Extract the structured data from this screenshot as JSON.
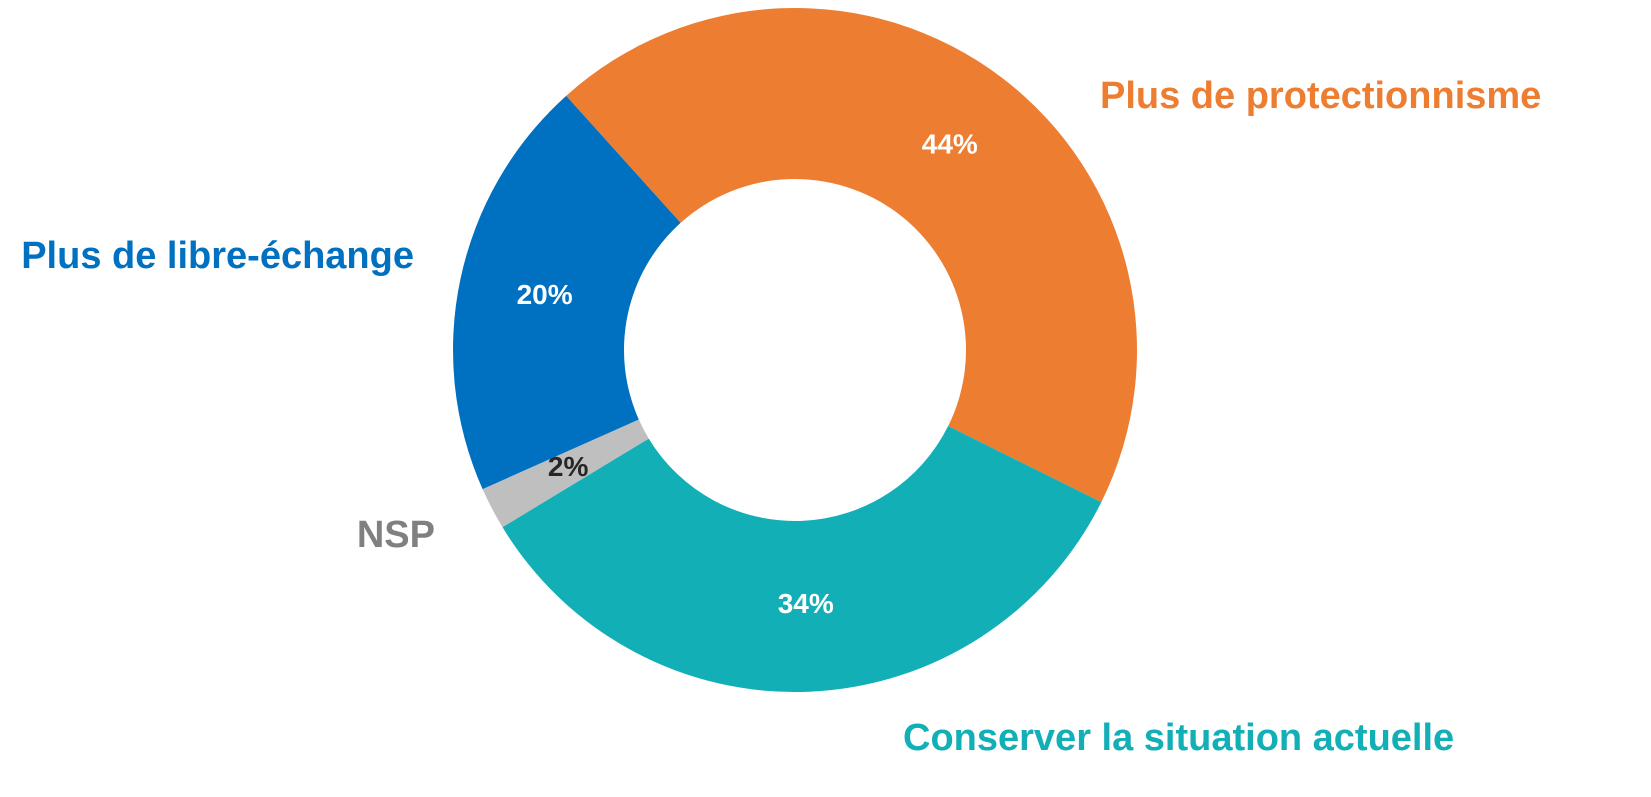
{
  "chart_data": {
    "type": "donut",
    "categories": [
      "Plus de protectionnisme",
      "Conserver la situation actuelle",
      "NSP",
      "Plus de libre-échange"
    ],
    "values": [
      44,
      34,
      2,
      20
    ],
    "value_labels": [
      "44%",
      "34%",
      "2%",
      "20%"
    ],
    "colors": [
      "#ed7d31",
      "#13afb6",
      "#bfbfbf",
      "#0070c0"
    ],
    "category_label_colors": [
      "#ed7d31",
      "#13afb6",
      "#808080",
      "#0070c0"
    ],
    "value_label_colors": [
      "#ffffff",
      "#ffffff",
      "#262626",
      "#ffffff"
    ]
  }
}
